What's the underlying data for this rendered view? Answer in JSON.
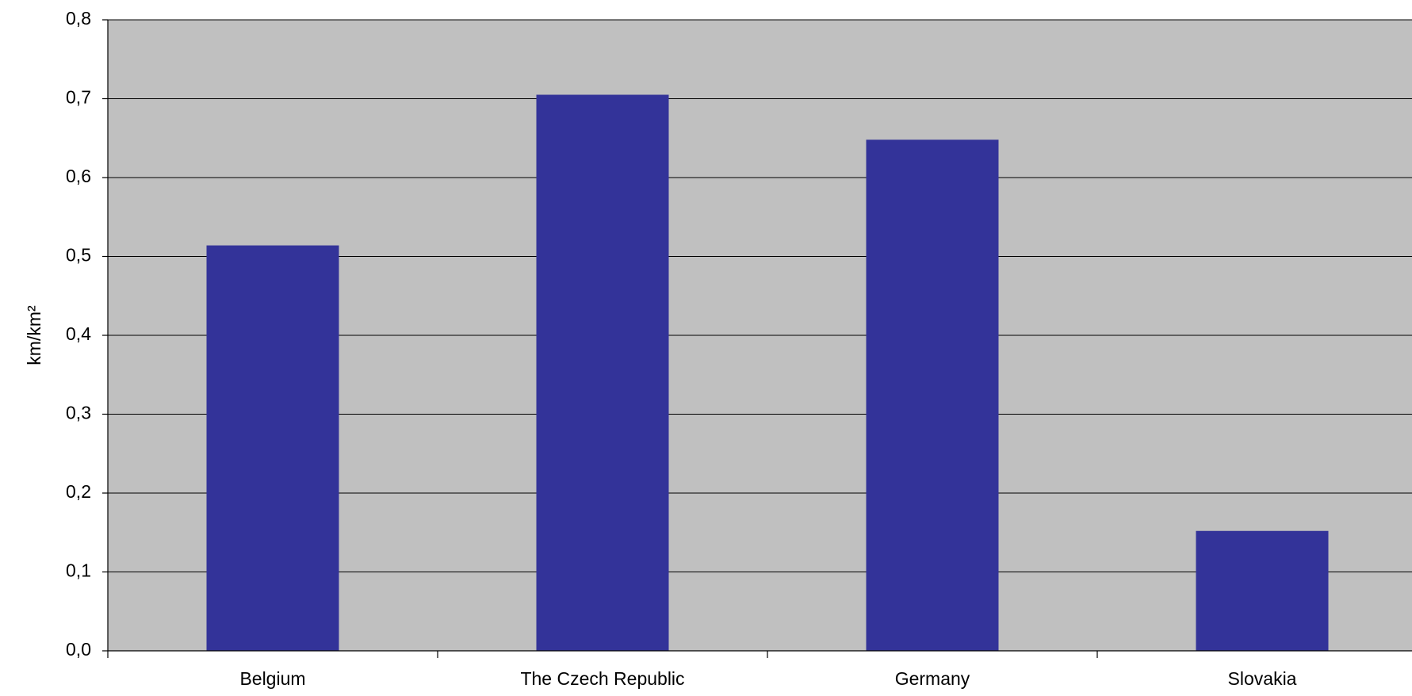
{
  "chart_data": {
    "type": "bar",
    "categories": [
      "Belgium",
      "The Czech Republic",
      "Germany",
      "Slovakia"
    ],
    "values": [
      0.514,
      0.705,
      0.648,
      0.152
    ],
    "ylabel": "km/km²",
    "xlabel": "",
    "ylim": [
      0,
      0.8
    ],
    "yticks": [
      "0,0",
      "0,1",
      "0,2",
      "0,3",
      "0,4",
      "0,5",
      "0,6",
      "0,7",
      "0,8"
    ],
    "grid": true,
    "colors": {
      "bar": "#333399",
      "plot_background": "#c0c0c0",
      "gridline": "#000000"
    }
  }
}
